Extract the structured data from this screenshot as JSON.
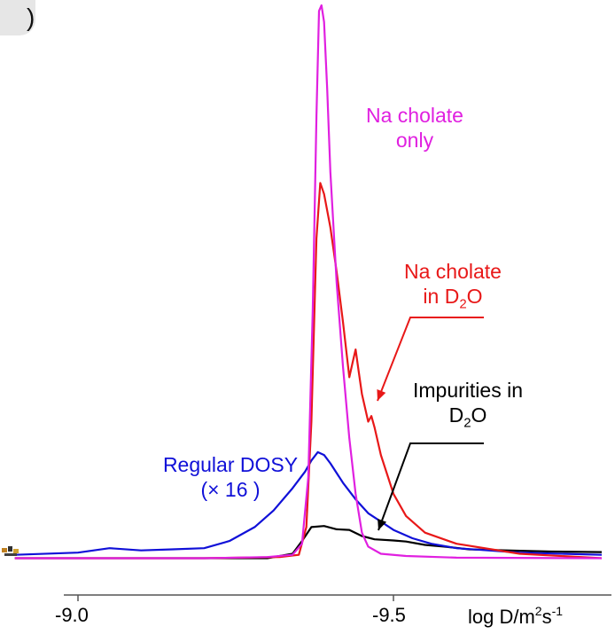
{
  "panel_label": ")",
  "chart_data": {
    "type": "line",
    "x_axis": {
      "label_main": "log D/m",
      "label_sup1": "2",
      "label_mid": "s",
      "label_sup2": "-1",
      "range": [
        -8.97,
        -9.83
      ],
      "inverted": true,
      "ticks": [
        {
          "value": -9.0,
          "label": "-9.0"
        },
        {
          "value": -9.5,
          "label": "-9.5"
        }
      ]
    },
    "y_axis": {
      "visible": false,
      "range": [
        0,
        1.0
      ]
    },
    "grid": false,
    "annotations": {
      "magenta": {
        "line1": "Na cholate",
        "line2": "only"
      },
      "red": {
        "line1": "Na cholate",
        "line2_pre": "in D",
        "line2_sub": "2",
        "line2_post": "O"
      },
      "black": {
        "line1": "Impurities in",
        "line2_pre": "D",
        "line2_sub": "2",
        "line2_post": "O"
      },
      "blue": {
        "line1": "Regular DOSY",
        "line2": "(× 16 )"
      }
    },
    "series": [
      {
        "key": "magenta",
        "color": "#e020e0",
        "points": [
          [
            -8.9,
            0.004
          ],
          [
            -9.2,
            0.004
          ],
          [
            -9.3,
            0.006
          ],
          [
            -9.34,
            0.01
          ],
          [
            -9.355,
            0.03
          ],
          [
            -9.365,
            0.15
          ],
          [
            -9.372,
            0.45
          ],
          [
            -9.378,
            0.8
          ],
          [
            -9.382,
            0.99
          ],
          [
            -9.386,
            1.0
          ],
          [
            -9.39,
            0.97
          ],
          [
            -9.395,
            0.85
          ],
          [
            -9.4,
            0.7
          ],
          [
            -9.41,
            0.5
          ],
          [
            -9.42,
            0.35
          ],
          [
            -9.43,
            0.22
          ],
          [
            -9.44,
            0.12
          ],
          [
            -9.45,
            0.05
          ],
          [
            -9.46,
            0.025
          ],
          [
            -9.48,
            0.012
          ],
          [
            -9.52,
            0.008
          ],
          [
            -9.6,
            0.005
          ],
          [
            -9.83,
            0.004
          ]
        ]
      },
      {
        "key": "red",
        "color": "#e81818",
        "points": [
          [
            -8.9,
            0.004
          ],
          [
            -9.2,
            0.004
          ],
          [
            -9.32,
            0.006
          ],
          [
            -9.35,
            0.01
          ],
          [
            -9.362,
            0.06
          ],
          [
            -9.37,
            0.25
          ],
          [
            -9.378,
            0.58
          ],
          [
            -9.384,
            0.68
          ],
          [
            -9.39,
            0.66
          ],
          [
            -9.4,
            0.6
          ],
          [
            -9.41,
            0.52
          ],
          [
            -9.42,
            0.43
          ],
          [
            -9.43,
            0.33
          ],
          [
            -9.436,
            0.36
          ],
          [
            -9.44,
            0.38
          ],
          [
            -9.445,
            0.34
          ],
          [
            -9.45,
            0.3
          ],
          [
            -9.46,
            0.25
          ],
          [
            -9.465,
            0.26
          ],
          [
            -9.47,
            0.24
          ],
          [
            -9.48,
            0.19
          ],
          [
            -9.5,
            0.12
          ],
          [
            -9.52,
            0.08
          ],
          [
            -9.55,
            0.05
          ],
          [
            -9.6,
            0.03
          ],
          [
            -9.7,
            0.012
          ],
          [
            -9.83,
            0.004
          ]
        ]
      },
      {
        "key": "black",
        "color": "#000000",
        "points": [
          [
            -8.9,
            0.004
          ],
          [
            -9.2,
            0.004
          ],
          [
            -9.3,
            0.004
          ],
          [
            -9.34,
            0.012
          ],
          [
            -9.355,
            0.035
          ],
          [
            -9.37,
            0.06
          ],
          [
            -9.39,
            0.062
          ],
          [
            -9.41,
            0.056
          ],
          [
            -9.43,
            0.055
          ],
          [
            -9.45,
            0.044
          ],
          [
            -9.47,
            0.038
          ],
          [
            -9.5,
            0.036
          ],
          [
            -9.52,
            0.034
          ],
          [
            -9.55,
            0.028
          ],
          [
            -9.58,
            0.025
          ],
          [
            -9.62,
            0.02
          ],
          [
            -9.68,
            0.018
          ],
          [
            -9.75,
            0.016
          ],
          [
            -9.83,
            0.015
          ]
        ]
      },
      {
        "key": "blue",
        "color": "#1010d8",
        "points": [
          [
            -8.9,
            0.01
          ],
          [
            -9.0,
            0.014
          ],
          [
            -9.05,
            0.022
          ],
          [
            -9.1,
            0.018
          ],
          [
            -9.15,
            0.02
          ],
          [
            -9.2,
            0.022
          ],
          [
            -9.24,
            0.035
          ],
          [
            -9.28,
            0.06
          ],
          [
            -9.31,
            0.09
          ],
          [
            -9.34,
            0.13
          ],
          [
            -9.36,
            0.16
          ],
          [
            -9.37,
            0.18
          ],
          [
            -9.38,
            0.195
          ],
          [
            -9.39,
            0.19
          ],
          [
            -9.4,
            0.175
          ],
          [
            -9.42,
            0.14
          ],
          [
            -9.44,
            0.11
          ],
          [
            -9.46,
            0.085
          ],
          [
            -9.48,
            0.07
          ],
          [
            -9.5,
            0.055
          ],
          [
            -9.53,
            0.04
          ],
          [
            -9.56,
            0.03
          ],
          [
            -9.6,
            0.022
          ],
          [
            -9.7,
            0.014
          ],
          [
            -9.83,
            0.01
          ]
        ]
      }
    ]
  }
}
